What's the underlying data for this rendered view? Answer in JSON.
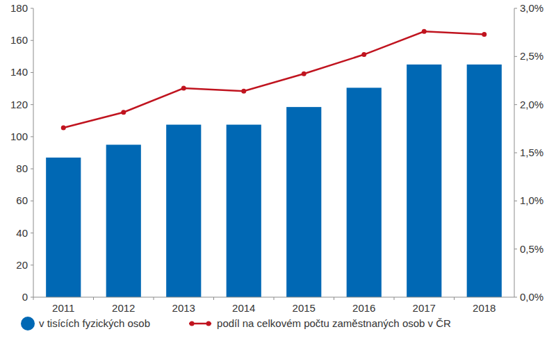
{
  "chart_data": {
    "type": "bar",
    "categories": [
      "2011",
      "2012",
      "2013",
      "2014",
      "2015",
      "2016",
      "2017",
      "2018"
    ],
    "series": [
      {
        "name": "v tisících fyzických osob",
        "type": "bar",
        "color": "#0068b4",
        "values": [
          87,
          95,
          107.5,
          107.5,
          118.5,
          130.5,
          145,
          145
        ]
      },
      {
        "name": "podíl na celkovém počtu zaměstnaných osob v ČR",
        "type": "line",
        "axis": "y2",
        "color": "#c0141f",
        "marker": "circle",
        "line_style": "solid",
        "values": [
          1.76,
          1.92,
          2.17,
          2.14,
          2.32,
          2.52,
          2.76,
          2.73
        ]
      }
    ],
    "ylim": [
      0,
      180
    ],
    "yticks": [
      0,
      20,
      40,
      60,
      80,
      100,
      120,
      140,
      160,
      180
    ],
    "y2lim": [
      0,
      3.0
    ],
    "y2ticks": [
      {
        "value": 0,
        "label": "0,0%"
      },
      {
        "value": 0.5,
        "label": "0,5%"
      },
      {
        "value": 1.0,
        "label": "1,0%"
      },
      {
        "value": 1.5,
        "label": "1,5%"
      },
      {
        "value": 2.0,
        "label": "2,0%"
      },
      {
        "value": 2.5,
        "label": "2,5%"
      },
      {
        "value": 3.0,
        "label": "3,0%"
      }
    ],
    "grid": false,
    "legend": "bottom"
  }
}
